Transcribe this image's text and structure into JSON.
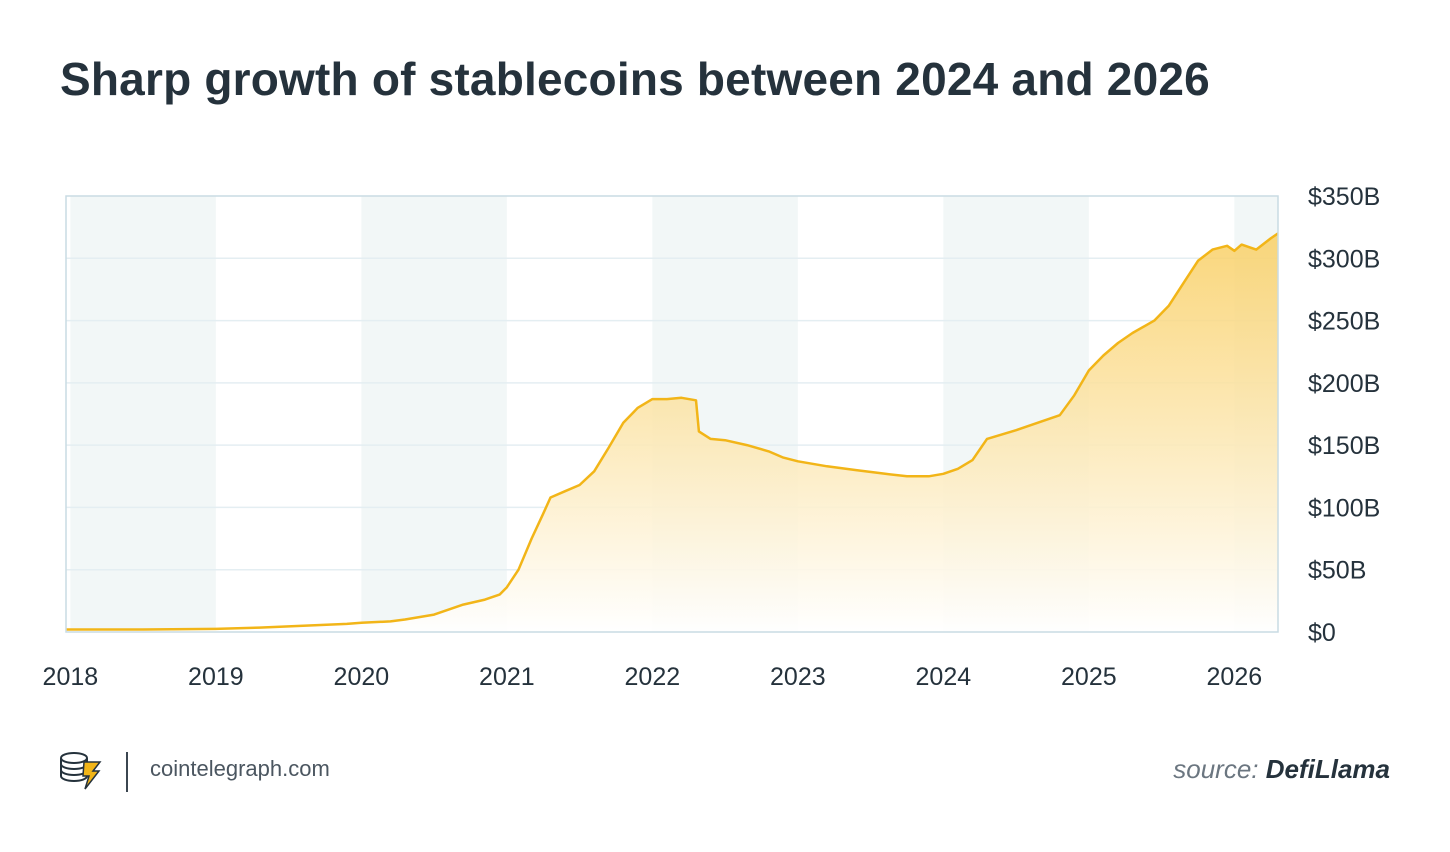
{
  "title": "Sharp growth of stablecoins between 2024 and 2026",
  "footer": {
    "site": "cointelegraph.com",
    "source_label": "source:",
    "source_name": "DefiLlama"
  },
  "colors": {
    "line": "#f2b518",
    "area_top": "#f9cf64",
    "band": "#f2f7f7",
    "frame": "#c9dbe3",
    "grid": "#e4eef2",
    "text": "#25323c"
  },
  "chart_data": {
    "type": "area",
    "title": "Sharp growth of stablecoins between 2024 and 2026",
    "xlabel": "",
    "ylabel": "",
    "x_ticks": [
      "2018",
      "2019",
      "2020",
      "2021",
      "2022",
      "2023",
      "2024",
      "2025",
      "2026"
    ],
    "y_ticks": [
      "$0",
      "$50B",
      "$100B",
      "$150B",
      "$200B",
      "$250B",
      "$300B",
      "$350B"
    ],
    "xlim": [
      2017.97,
      2026.3
    ],
    "ylim": [
      0,
      350
    ],
    "grid": true,
    "y_axis_side": "right",
    "units": "billion USD",
    "alternating_year_bands": [
      [
        2018.0,
        2019.0
      ],
      [
        2020.0,
        2021.0
      ],
      [
        2022.0,
        2023.0
      ],
      [
        2024.0,
        2025.0
      ],
      [
        2026.0,
        2026.3
      ]
    ],
    "series": [
      {
        "x": [
          2017.97,
          2018.5,
          2019.0,
          2019.3,
          2019.6,
          2019.9,
          2020.0,
          2020.2,
          2020.3,
          2020.5,
          2020.7,
          2020.85,
          2020.95,
          2021.0,
          2021.08,
          2021.17,
          2021.25,
          2021.3,
          2021.4,
          2021.5,
          2021.6,
          2021.7,
          2021.8,
          2021.9,
          2022.0,
          2022.1,
          2022.2,
          2022.3,
          2022.32,
          2022.4,
          2022.5,
          2022.65,
          2022.8,
          2022.9,
          2023.0,
          2023.2,
          2023.4,
          2023.6,
          2023.75,
          2023.9,
          2024.0,
          2024.1,
          2024.2,
          2024.3,
          2024.5,
          2024.65,
          2024.8,
          2024.9,
          2025.0,
          2025.1,
          2025.2,
          2025.3,
          2025.45,
          2025.55,
          2025.65,
          2025.75,
          2025.85,
          2025.95,
          2026.0,
          2026.05,
          2026.15,
          2026.25,
          2026.3
        ],
        "values": [
          2,
          2,
          2.5,
          3.5,
          5,
          6.5,
          7.5,
          8.5,
          10,
          14,
          22,
          26,
          30,
          36,
          50,
          75,
          95,
          108,
          113,
          118,
          129,
          148,
          168,
          180,
          187,
          187,
          188,
          186,
          161,
          155,
          154,
          150,
          145,
          140,
          137,
          133,
          130,
          127,
          125,
          125,
          127,
          131,
          138,
          155,
          162,
          168,
          174,
          190,
          210,
          222,
          232,
          240,
          250,
          262,
          280,
          298,
          307,
          310,
          306,
          311,
          307,
          316,
          320
        ]
      }
    ]
  }
}
